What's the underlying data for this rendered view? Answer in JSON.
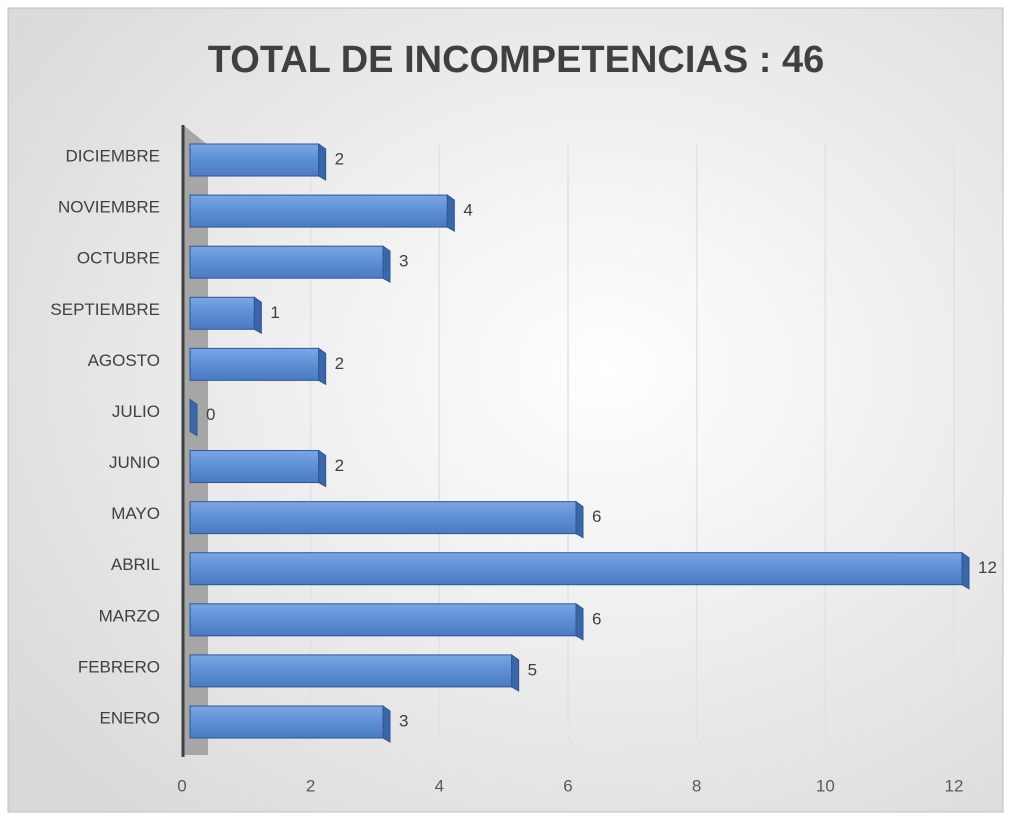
{
  "chart_data": {
    "type": "bar",
    "orientation": "horizontal",
    "title": "TOTAL DE INCOMPETENCIAS : 46",
    "categories": [
      "ENERO",
      "FEBRERO",
      "MARZO",
      "ABRIL",
      "MAYO",
      "JUNIO",
      "JULIO",
      "AGOSTO",
      "SEPTIEMBRE",
      "OCTUBRE",
      "NOVIEMBRE",
      "DICIEMBRE"
    ],
    "values": [
      3,
      5,
      6,
      12,
      6,
      2,
      0,
      2,
      1,
      3,
      4,
      2
    ],
    "color": "#5b8fd6",
    "xlim": [
      0,
      12
    ],
    "xticks": [
      0,
      2,
      4,
      6,
      8,
      10,
      12
    ],
    "grid": true
  }
}
